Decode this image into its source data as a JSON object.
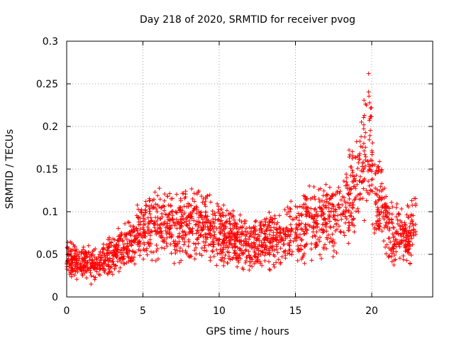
{
  "chart_data": {
    "type": "scatter",
    "title": "Day 218 of 2020, SRMTID for receiver pvog",
    "xlabel": "GPS time / hours",
    "ylabel": "SRMTID / TECUs",
    "xlim": [
      0,
      24
    ],
    "ylim": [
      0,
      0.3
    ],
    "xticks": [
      0,
      5,
      10,
      15,
      20
    ],
    "xtick_labels": [
      "0",
      "5",
      "10",
      "15",
      "20"
    ],
    "yticks": [
      0,
      0.05,
      0.1,
      0.15,
      0.2,
      0.25,
      0.3
    ],
    "ytick_labels": [
      "0",
      "0.05",
      "0.1",
      "0.15",
      "0.2",
      "0.25",
      "0.3"
    ],
    "grid": true,
    "marker": "+",
    "marker_color": "#ff0000",
    "series": [
      {
        "name": "SRMTID",
        "x_range": [
          0,
          22.9
        ],
        "trend": [
          {
            "x": 0.0,
            "y": 0.045
          },
          {
            "x": 1.0,
            "y": 0.04
          },
          {
            "x": 2.0,
            "y": 0.038
          },
          {
            "x": 3.0,
            "y": 0.05
          },
          {
            "x": 4.0,
            "y": 0.06
          },
          {
            "x": 5.0,
            "y": 0.08
          },
          {
            "x": 6.0,
            "y": 0.085
          },
          {
            "x": 7.0,
            "y": 0.08
          },
          {
            "x": 8.0,
            "y": 0.085
          },
          {
            "x": 9.0,
            "y": 0.085
          },
          {
            "x": 10.0,
            "y": 0.075
          },
          {
            "x": 11.0,
            "y": 0.07
          },
          {
            "x": 12.0,
            "y": 0.06
          },
          {
            "x": 13.0,
            "y": 0.065
          },
          {
            "x": 14.0,
            "y": 0.07
          },
          {
            "x": 15.0,
            "y": 0.075
          },
          {
            "x": 16.0,
            "y": 0.09
          },
          {
            "x": 17.0,
            "y": 0.09
          },
          {
            "x": 18.0,
            "y": 0.095
          },
          {
            "x": 19.0,
            "y": 0.13
          },
          {
            "x": 19.8,
            "y": 0.18
          },
          {
            "x": 20.3,
            "y": 0.12
          },
          {
            "x": 21.0,
            "y": 0.085
          },
          {
            "x": 22.0,
            "y": 0.07
          },
          {
            "x": 22.9,
            "y": 0.08
          }
        ],
        "max_point": {
          "x": 19.8,
          "y": 0.262
        },
        "min_point": {
          "x": 1.6,
          "y": 0.015
        }
      }
    ]
  },
  "colors": {
    "markers": "#ff0000",
    "axis": "#000000",
    "grid": "#a0a0a0"
  }
}
